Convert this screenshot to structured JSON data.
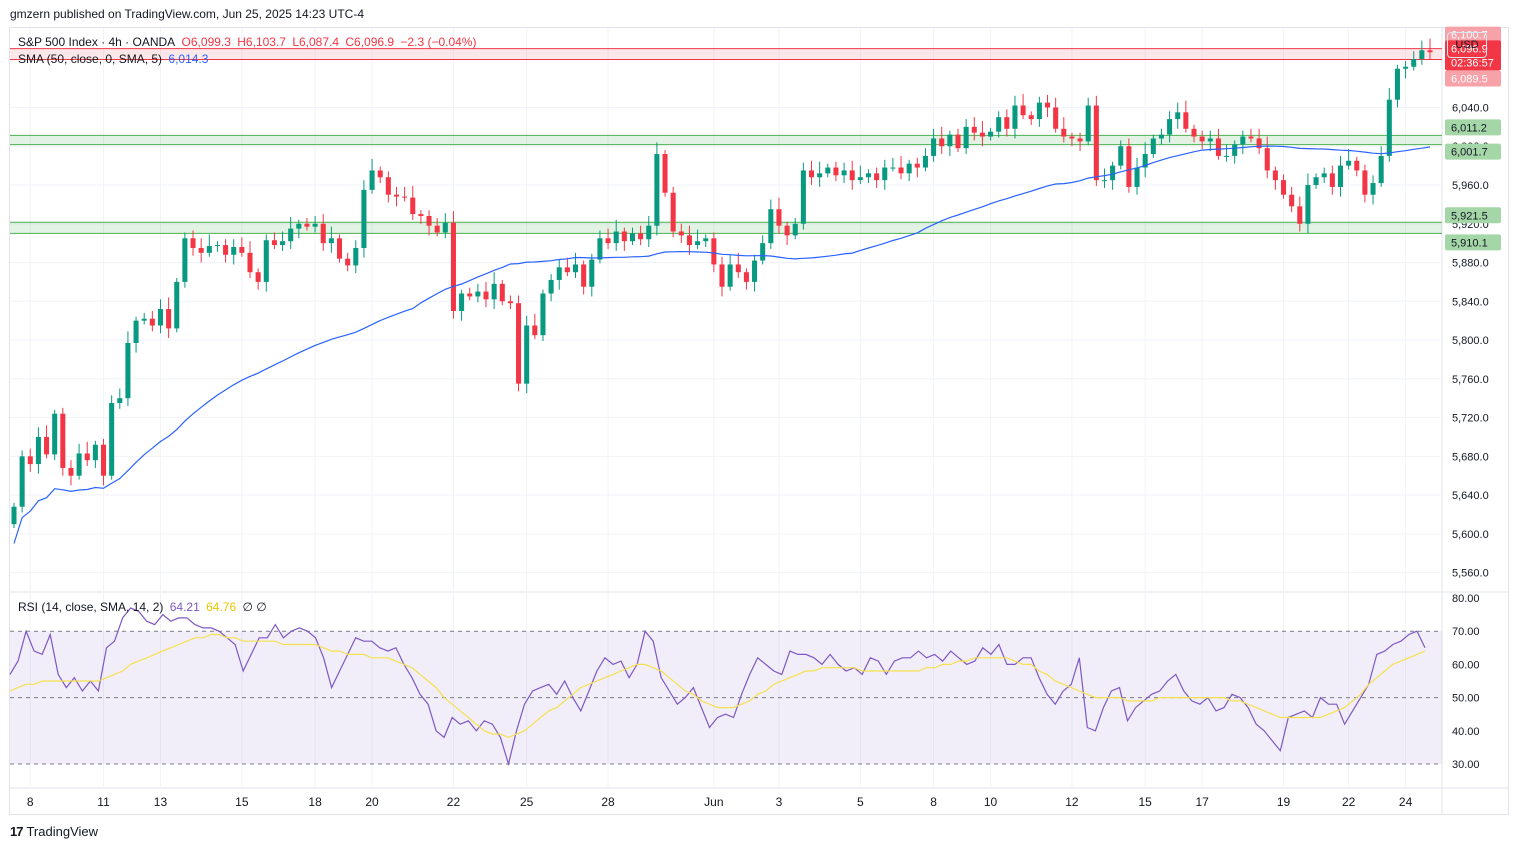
{
  "header": {
    "publish_line": "gmzern published on TradingView.com, Jun 25, 2025 14:23 UTC-4"
  },
  "legend": {
    "symbol": "S&P 500 Index · 4h · OANDA",
    "open": "O6,099.3",
    "high": "H6,103.7",
    "low": "L6,087.4",
    "close": "C6,096.9",
    "change": "−2.3 (−0.04%)",
    "sma_label": "SMA (50, close, 0, SMA, 5)",
    "sma_value": "6,014.3",
    "rsi_label": "RSI (14, close, SMA, 14, 2)",
    "rsi_value": "64.21",
    "rsi_ma_value": "64.76",
    "rsi_extra": "∅  ∅"
  },
  "currency": "USD",
  "footer": {
    "brand": "TradingView",
    "mark": "17"
  },
  "colors": {
    "up": "#089981",
    "down": "#f23645",
    "sma": "#2962ff",
    "rsi": "#7e57c2",
    "rsi_ma": "#f5e050",
    "band_green": "#4caf50",
    "band_red": "#f23645"
  },
  "chart_data": [
    {
      "type": "candlestick",
      "yaxis_ticks": [
        "6,040.0",
        "6,000.0",
        "5,960.0",
        "5,920.0",
        "5,880.0",
        "5,840.0",
        "5,800.0",
        "5,760.0",
        "5,720.0",
        "5,680.0",
        "5,640.0",
        "5,600.0",
        "5,560.0"
      ],
      "ylim": [
        5540,
        6122
      ],
      "xaxis_ticks": [
        {
          "label": "8",
          "i": 2
        },
        {
          "label": "11",
          "i": 11
        },
        {
          "label": "13",
          "i": 18
        },
        {
          "label": "15",
          "i": 28
        },
        {
          "label": "18",
          "i": 37
        },
        {
          "label": "20",
          "i": 44
        },
        {
          "label": "22",
          "i": 54
        },
        {
          "label": "25",
          "i": 63
        },
        {
          "label": "28",
          "i": 73
        },
        {
          "label": "Jun",
          "i": 86
        },
        {
          "label": "3",
          "i": 94
        },
        {
          "label": "5",
          "i": 104
        },
        {
          "label": "8",
          "i": 113
        },
        {
          "label": "10",
          "i": 120
        },
        {
          "label": "12",
          "i": 130
        },
        {
          "label": "15",
          "i": 139
        },
        {
          "label": "17",
          "i": 146
        },
        {
          "label": "19",
          "i": 156
        },
        {
          "label": "22",
          "i": 164
        },
        {
          "label": "24",
          "i": 171
        }
      ],
      "price_labels": [
        {
          "text": "6,100.7",
          "value": 6100.7,
          "kind": "red"
        },
        {
          "text": "6,096.9",
          "value": 6096.9,
          "kind": "current"
        },
        {
          "text": "02:36:57",
          "value": 6096.9,
          "kind": "timer"
        },
        {
          "text": "6,089.5",
          "value": 6089.5,
          "kind": "red"
        },
        {
          "text": "6,011.2",
          "value": 6011.2,
          "kind": "green"
        },
        {
          "text": "6,001.7",
          "value": 6001.7,
          "kind": "green"
        },
        {
          "text": "5,921.5",
          "value": 5921.5,
          "kind": "green"
        },
        {
          "text": "5,910.1",
          "value": 5910.1,
          "kind": "green"
        }
      ],
      "zones": [
        {
          "low": 6089.5,
          "high": 6100.7,
          "color": "red"
        },
        {
          "low": 6001.7,
          "high": 6011.2,
          "color": "green"
        },
        {
          "low": 5910.1,
          "high": 5921.5,
          "color": "green"
        }
      ],
      "candle_closes": [
        5628,
        5680,
        5672,
        5700,
        5682,
        5724,
        5668,
        5660,
        5683,
        5676,
        5692,
        5660,
        5735,
        5740,
        5797,
        5820,
        5822,
        5815,
        5832,
        5812,
        5860,
        5905,
        5895,
        5890,
        5897,
        5898,
        5888,
        5896,
        5890,
        5870,
        5860,
        5903,
        5898,
        5902,
        5915,
        5920,
        5917,
        5920,
        5900,
        5905,
        5884,
        5877,
        5895,
        5955,
        5975,
        5968,
        5950,
        5948,
        5947,
        5930,
        5928,
        5918,
        5911,
        5921,
        5830,
        5848,
        5845,
        5850,
        5842,
        5858,
        5840,
        5838,
        5755,
        5815,
        5805,
        5848,
        5862,
        5875,
        5870,
        5878,
        5855,
        5883,
        5905,
        5900,
        5912,
        5902,
        5910,
        5904,
        5918,
        5992,
        5952,
        5912,
        5908,
        5898,
        5902,
        5905,
        5878,
        5855,
        5878,
        5870,
        5860,
        5882,
        5900,
        5935,
        5918,
        5908,
        5920,
        5975,
        5968,
        5972,
        5978,
        5970,
        5975,
        5965,
        5968,
        5972,
        5965,
        5978,
        5978,
        5972,
        5982,
        5978,
        5990,
        6008,
        6000,
        6012,
        5998,
        6020,
        6014,
        6010,
        6015,
        6030,
        6018,
        6042,
        6032,
        6028,
        6045,
        6040,
        6018,
        6010,
        6008,
        6005,
        6042,
        5965,
        5965,
        5980,
        6000,
        5958,
        5978,
        5992,
        6008,
        6012,
        6028,
        6035,
        6018,
        6010,
        6005,
        6008,
        5990,
        5990,
        6002,
        6010,
        6008,
        5998,
        5975,
        5965,
        5950,
        5938,
        5920,
        5960,
        5968,
        5972,
        5958,
        5980,
        5985,
        5975,
        5950,
        5962,
        5990,
        6048,
        6080,
        6082,
        6090,
        6099,
        6097
      ]
    },
    {
      "type": "line",
      "series": [
        {
          "name": "RSI",
          "values": [
            57,
            61,
            70,
            64,
            63,
            69,
            57,
            53,
            56,
            52,
            55,
            52,
            65,
            67,
            74,
            77,
            76,
            73,
            72,
            75,
            73,
            74,
            74,
            72,
            71,
            71,
            70,
            68,
            66,
            58,
            63,
            68,
            68,
            72,
            68,
            70,
            71,
            70,
            68,
            62,
            53,
            58,
            63,
            68,
            67,
            67,
            65,
            64,
            65,
            60,
            56,
            51,
            48,
            40,
            38,
            44,
            42,
            43,
            40,
            43,
            42,
            38,
            30,
            40,
            48,
            52,
            53,
            54,
            51,
            55,
            50,
            46,
            52,
            58,
            62,
            60,
            61,
            56,
            60,
            70,
            67,
            56,
            52,
            48,
            50,
            53,
            47,
            41,
            44,
            45,
            44,
            51,
            57,
            62,
            60,
            58,
            57,
            64,
            63,
            63,
            62,
            60,
            63,
            60,
            58,
            59,
            57,
            62,
            61,
            57,
            61,
            62,
            62,
            64,
            62,
            63,
            61,
            64,
            62,
            60,
            61,
            65,
            63,
            66,
            60,
            60,
            62,
            62,
            56,
            51,
            48,
            52,
            54,
            62,
            41,
            40,
            47,
            52,
            53,
            43,
            47,
            49,
            51,
            52,
            55,
            57,
            52,
            49,
            48,
            50,
            46,
            47,
            51,
            50,
            47,
            42,
            40,
            37,
            34,
            44,
            45,
            46,
            44,
            50,
            48,
            48,
            42,
            46,
            50,
            54,
            63,
            64,
            66,
            67,
            69,
            70,
            65
          ]
        }
      ],
      "ma_values": [
        52,
        53,
        54,
        54,
        55,
        55,
        55,
        55,
        55,
        55,
        55,
        55,
        56,
        57,
        58,
        60,
        61,
        62,
        63,
        64,
        65,
        66,
        67,
        68,
        68,
        69,
        69,
        68,
        68,
        67,
        67,
        67,
        67,
        67,
        66,
        66,
        66,
        66,
        66,
        65,
        64,
        64,
        63,
        63,
        63,
        62,
        62,
        62,
        61,
        60,
        59,
        57,
        55,
        53,
        50,
        48,
        46,
        44,
        42,
        40,
        39,
        39,
        38,
        39,
        40,
        42,
        44,
        46,
        47,
        49,
        51,
        53,
        54,
        55,
        56,
        57,
        58,
        59,
        60,
        60,
        59,
        58,
        56,
        54,
        52,
        51,
        49,
        48,
        47,
        47,
        47,
        48,
        49,
        51,
        52,
        54,
        55,
        56,
        57,
        58,
        58,
        59,
        59,
        59,
        59,
        59,
        58,
        58,
        58,
        58,
        58,
        58,
        58,
        58,
        59,
        59,
        60,
        60,
        61,
        61,
        62,
        62,
        62,
        62,
        62,
        61,
        60,
        60,
        58,
        57,
        55,
        54,
        53,
        52,
        51,
        50,
        50,
        50,
        50,
        49,
        49,
        49,
        49,
        50,
        50,
        50,
        50,
        50,
        50,
        50,
        50,
        50,
        49,
        49,
        48,
        47,
        46,
        45,
        44,
        44,
        44,
        44,
        44,
        44,
        45,
        46,
        47,
        49,
        51,
        54,
        56,
        58,
        60,
        61,
        62,
        63,
        64
      ]
    }
  ],
  "rsi_axis_ticks": [
    "80.00",
    "70.00",
    "60.00",
    "50.00",
    "40.00",
    "30.00"
  ]
}
